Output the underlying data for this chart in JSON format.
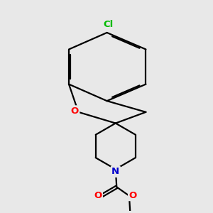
{
  "background_color": "#e8e8e8",
  "atom_colors": {
    "O": "#ff0000",
    "N": "#0000cc",
    "Cl": "#00bb00"
  },
  "bond_color": "#000000",
  "bond_width": 1.6,
  "figsize": [
    3.0,
    3.0
  ],
  "dpi": 100,
  "xlim": [
    0.0,
    8.0
  ],
  "ylim": [
    0.2,
    10.2
  ]
}
